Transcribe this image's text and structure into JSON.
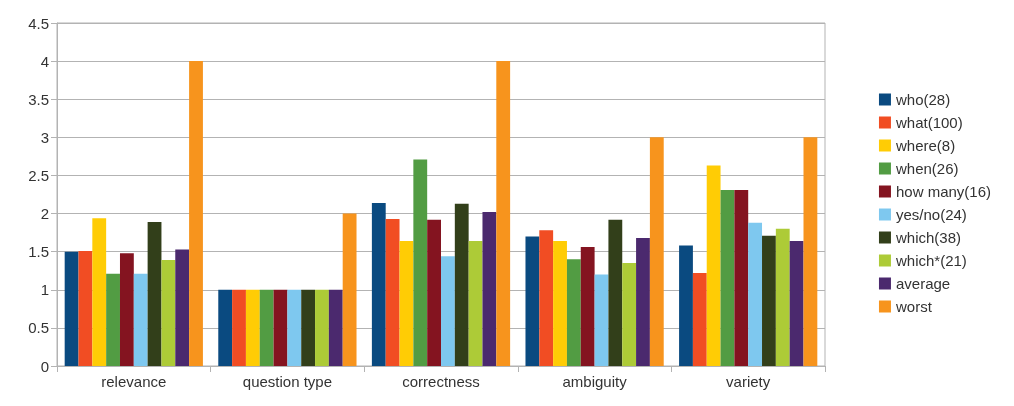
{
  "chart_data": {
    "type": "bar",
    "categories": [
      "relevance",
      "question type",
      "correctness",
      "ambiguity",
      "variety"
    ],
    "series": [
      {
        "name": "who(28)",
        "color": "#0a4a80",
        "values": [
          1.5,
          1,
          2.14,
          1.7,
          1.58
        ]
      },
      {
        "name": "what(100)",
        "color": "#f14d23",
        "values": [
          1.51,
          1,
          1.93,
          1.78,
          1.22
        ]
      },
      {
        "name": "where(8)",
        "color": "#ffcc05",
        "values": [
          1.94,
          1,
          1.64,
          1.64,
          2.63
        ]
      },
      {
        "name": "when(26)",
        "color": "#529c43",
        "values": [
          1.21,
          1,
          2.71,
          1.4,
          2.31
        ]
      },
      {
        "name": "how many(16)",
        "color": "#841420",
        "values": [
          1.48,
          1,
          1.92,
          1.56,
          2.31
        ]
      },
      {
        "name": "yes/no(24)",
        "color": "#7ec8ef",
        "values": [
          1.21,
          1,
          1.44,
          1.2,
          1.88
        ]
      },
      {
        "name": "which(38)",
        "color": "#323f1a",
        "values": [
          1.89,
          1,
          2.13,
          1.92,
          1.71
        ]
      },
      {
        "name": "which*(21)",
        "color": "#adcb37",
        "values": [
          1.39,
          1,
          1.64,
          1.35,
          1.8
        ]
      },
      {
        "name": "average",
        "color": "#4b296e",
        "values": [
          1.53,
          1,
          2.02,
          1.68,
          1.64
        ]
      },
      {
        "name": "worst",
        "color": "#f7941d",
        "values": [
          4,
          2,
          4,
          3,
          3
        ]
      }
    ],
    "ylim": [
      0,
      4.5
    ],
    "yticks": [
      0,
      0.5,
      1,
      1.5,
      2,
      2.5,
      3,
      3.5,
      4,
      4.5
    ],
    "grid": "y",
    "legend": "right"
  }
}
